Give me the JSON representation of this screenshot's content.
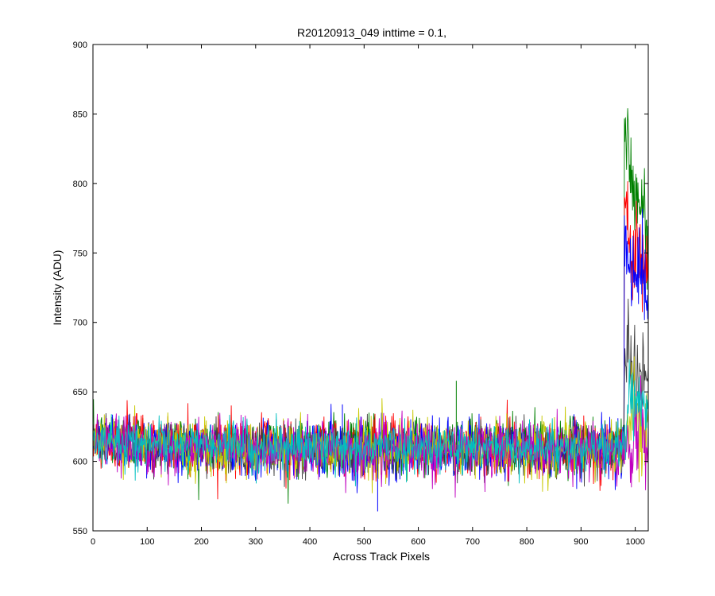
{
  "chart_data": {
    "type": "line",
    "title": "R20120913_049 inttime = 0.1,",
    "xlabel": "Across Track Pixels",
    "ylabel": "Intensity (ADU)",
    "xlim": [
      0,
      1024
    ],
    "ylim": [
      550,
      900
    ],
    "xticks": [
      0,
      100,
      200,
      300,
      400,
      500,
      600,
      700,
      800,
      900,
      1000
    ],
    "yticks": [
      550,
      600,
      650,
      700,
      750,
      800,
      850,
      900
    ],
    "grid": false,
    "legend": "none",
    "x": {
      "start": 1,
      "end": 1024,
      "step": 1
    },
    "series": [
      {
        "color": "#008000",
        "baseline": 611,
        "noise": 10,
        "edge_level": 800,
        "edge_start": 980,
        "max": 884,
        "max_x": 985
      },
      {
        "color": "#ff0000",
        "baseline": 610,
        "noise": 10,
        "edge_level": 760,
        "edge_start": 980,
        "max": 825,
        "max_x": 982
      },
      {
        "color": "#0000ff",
        "baseline": 609,
        "noise": 10,
        "edge_level": 745,
        "edge_start": 980,
        "max": 790,
        "max_x": 986
      },
      {
        "color": "#404040",
        "baseline": 608,
        "noise": 9,
        "edge_level": 670,
        "edge_start": 980,
        "max": 695,
        "max_x": 990
      },
      {
        "color": "#c8c800",
        "baseline": 609,
        "noise": 10,
        "edge_level": 625,
        "edge_start": 985,
        "max": 660,
        "max_x": 1000
      },
      {
        "color": "#c000c0",
        "baseline": 608,
        "noise": 10,
        "edge_level": 612,
        "edge_start": 990,
        "max": 640,
        "max_x": 1010
      },
      {
        "color": "#00c0c0",
        "baseline": 610,
        "noise": 8,
        "edge_level": 640,
        "edge_start": 985,
        "max": 665,
        "max_x": 995
      }
    ],
    "outliers": [
      {
        "x": 670,
        "y": 658,
        "color": "#008000"
      },
      {
        "x": 525,
        "y": 564,
        "color": "#0000ff"
      },
      {
        "x": 460,
        "y": 641,
        "color": "#0000ff"
      }
    ]
  }
}
